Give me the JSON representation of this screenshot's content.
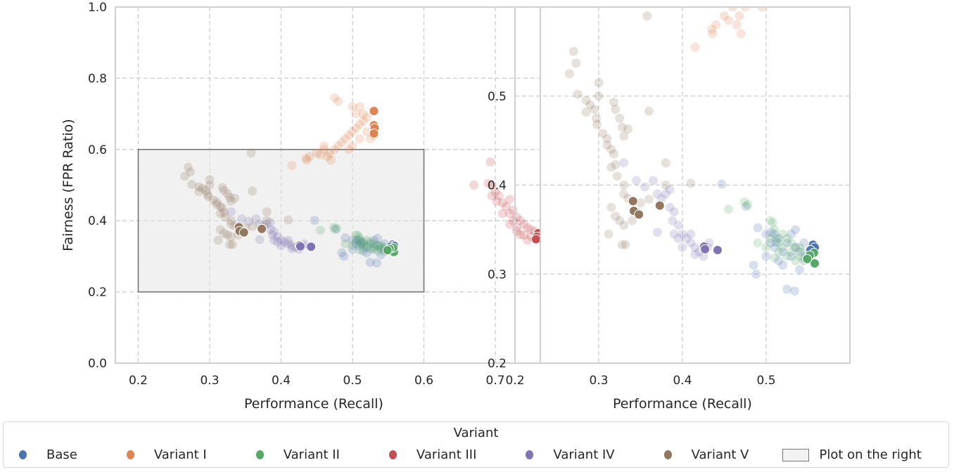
{
  "chart_data": [
    {
      "type": "scatter",
      "panel": "left",
      "xlabel": "Performance (Recall)",
      "ylabel": "Fairness (FPR Ratio)",
      "xlim": [
        0.168,
        0.763
      ],
      "ylim": [
        0.0,
        1.0
      ],
      "xticks": [
        "0.2",
        "0.3",
        "0.4",
        "0.5",
        "0.6",
        "0.7"
      ],
      "xtick_values": [
        0.2,
        0.3,
        0.4,
        0.5,
        0.6,
        0.7
      ],
      "yticks": [
        "0.0",
        "0.2",
        "0.4",
        "0.6",
        "0.8",
        "1.0"
      ],
      "ytick_values": [
        0.0,
        0.2,
        0.4,
        0.6,
        0.8,
        1.0
      ],
      "grid": true,
      "highlight_region": {
        "x": [
          0.2,
          0.6
        ],
        "y": [
          0.2,
          0.6
        ],
        "label": "Plot on the right"
      }
    },
    {
      "type": "scatter",
      "panel": "right",
      "xlabel": "Performance (Recall)",
      "ylabel": "",
      "xlim": [
        0.2,
        0.6
      ],
      "ylim": [
        0.2,
        0.6
      ],
      "xticks": [
        "0.2",
        "0.3",
        "0.4",
        "0.5"
      ],
      "xtick_values": [
        0.2,
        0.3,
        0.4,
        0.5
      ],
      "yticks": [
        "0.2",
        "0.3",
        "0.4",
        "0.5"
      ],
      "ytick_values": [
        0.2,
        0.3,
        0.4,
        0.5
      ],
      "grid": true
    }
  ],
  "series": [
    {
      "name": "Base",
      "color": "#4c72b0",
      "faded": [
        [
          0.49,
          0.352
        ],
        [
          0.5,
          0.345
        ],
        [
          0.505,
          0.335
        ],
        [
          0.51,
          0.33
        ],
        [
          0.515,
          0.34
        ],
        [
          0.52,
          0.325
        ],
        [
          0.525,
          0.335
        ],
        [
          0.53,
          0.32
        ],
        [
          0.535,
          0.33
        ],
        [
          0.54,
          0.325
        ],
        [
          0.545,
          0.335
        ],
        [
          0.535,
          0.35
        ],
        [
          0.52,
          0.31
        ],
        [
          0.515,
          0.315
        ],
        [
          0.525,
          0.283
        ],
        [
          0.534,
          0.281
        ],
        [
          0.485,
          0.31
        ],
        [
          0.488,
          0.3
        ],
        [
          0.447,
          0.401
        ],
        [
          0.476,
          0.376
        ],
        [
          0.54,
          0.305
        ],
        [
          0.53,
          0.345
        ],
        [
          0.545,
          0.315
        ],
        [
          0.55,
          0.322
        ],
        [
          0.51,
          0.345
        ],
        [
          0.5,
          0.32
        ],
        [
          0.506,
          0.347
        ],
        [
          0.512,
          0.336
        ]
      ],
      "highlighted": [
        [
          0.556,
          0.333
        ],
        [
          0.558,
          0.33
        ],
        [
          0.553,
          0.327
        ]
      ]
    },
    {
      "name": "Variant I",
      "color": "#dd8452",
      "faded": [
        [
          0.415,
          0.555
        ],
        [
          0.435,
          0.575
        ],
        [
          0.436,
          0.57
        ],
        [
          0.44,
          0.58
        ],
        [
          0.45,
          0.59
        ],
        [
          0.46,
          0.6
        ],
        [
          0.465,
          0.58
        ],
        [
          0.47,
          0.57
        ],
        [
          0.468,
          0.59
        ],
        [
          0.475,
          0.6
        ],
        [
          0.48,
          0.61
        ],
        [
          0.485,
          0.62
        ],
        [
          0.49,
          0.63
        ],
        [
          0.495,
          0.64
        ],
        [
          0.5,
          0.65
        ],
        [
          0.505,
          0.66
        ],
        [
          0.51,
          0.67
        ],
        [
          0.515,
          0.68
        ],
        [
          0.52,
          0.69
        ],
        [
          0.505,
          0.7
        ],
        [
          0.5,
          0.72
        ],
        [
          0.48,
          0.735
        ],
        [
          0.475,
          0.745
        ],
        [
          0.51,
          0.72
        ],
        [
          0.515,
          0.7
        ],
        [
          0.52,
          0.65
        ],
        [
          0.525,
          0.63
        ],
        [
          0.53,
          0.64
        ],
        [
          0.495,
          0.6
        ],
        [
          0.455,
          0.585
        ],
        [
          0.46,
          0.61
        ],
        [
          0.5,
          0.61
        ],
        [
          0.51,
          0.63
        ]
      ],
      "highlighted": [
        [
          0.53,
          0.708
        ],
        [
          0.53,
          0.668
        ],
        [
          0.531,
          0.66
        ],
        [
          0.53,
          0.645
        ]
      ]
    },
    {
      "name": "Variant II",
      "color": "#55a868",
      "faded": [
        [
          0.455,
          0.373
        ],
        [
          0.474,
          0.381
        ],
        [
          0.478,
          0.378
        ],
        [
          0.49,
          0.335
        ],
        [
          0.505,
          0.36
        ],
        [
          0.508,
          0.358
        ],
        [
          0.51,
          0.35
        ],
        [
          0.512,
          0.34
        ],
        [
          0.515,
          0.335
        ],
        [
          0.52,
          0.33
        ],
        [
          0.525,
          0.34
        ],
        [
          0.53,
          0.325
        ],
        [
          0.535,
          0.33
        ],
        [
          0.54,
          0.32
        ],
        [
          0.545,
          0.318
        ],
        [
          0.51,
          0.318
        ],
        [
          0.52,
          0.345
        ],
        [
          0.525,
          0.32
        ],
        [
          0.53,
          0.335
        ],
        [
          0.535,
          0.315
        ],
        [
          0.54,
          0.33
        ],
        [
          0.505,
          0.34
        ],
        [
          0.5,
          0.33
        ],
        [
          0.515,
          0.325
        ],
        [
          0.545,
          0.325
        ]
      ],
      "highlighted": [
        [
          0.558,
          0.312
        ],
        [
          0.557,
          0.324
        ],
        [
          0.552,
          0.321
        ],
        [
          0.549,
          0.317
        ]
      ]
    },
    {
      "name": "Variant III",
      "color": "#c44e52",
      "faded": [
        [
          0.67,
          0.5
        ],
        [
          0.69,
          0.505
        ],
        [
          0.695,
          0.5
        ],
        [
          0.693,
          0.565
        ],
        [
          0.7,
          0.48
        ],
        [
          0.695,
          0.47
        ],
        [
          0.705,
          0.47
        ],
        [
          0.71,
          0.45
        ],
        [
          0.715,
          0.44
        ],
        [
          0.72,
          0.46
        ],
        [
          0.72,
          0.42
        ],
        [
          0.725,
          0.43
        ],
        [
          0.73,
          0.41
        ],
        [
          0.735,
          0.4
        ],
        [
          0.74,
          0.39
        ],
        [
          0.745,
          0.38
        ],
        [
          0.75,
          0.375
        ],
        [
          0.74,
          0.36
        ],
        [
          0.73,
          0.38
        ],
        [
          0.72,
          0.39
        ],
        [
          0.71,
          0.42
        ],
        [
          0.755,
          0.37
        ],
        [
          0.735,
          0.36
        ],
        [
          0.745,
          0.345
        ],
        [
          0.75,
          0.355
        ],
        [
          0.73,
          0.37
        ],
        [
          0.725,
          0.4
        ],
        [
          0.702,
          0.455
        ]
      ],
      "highlighted": [
        [
          0.76,
          0.365
        ],
        [
          0.758,
          0.355
        ],
        [
          0.757,
          0.348
        ]
      ]
    },
    {
      "name": "Variant IV",
      "color": "#8172b3",
      "faded": [
        [
          0.33,
          0.425
        ],
        [
          0.345,
          0.405
        ],
        [
          0.355,
          0.398
        ],
        [
          0.365,
          0.405
        ],
        [
          0.37,
          0.39
        ],
        [
          0.375,
          0.385
        ],
        [
          0.38,
          0.39
        ],
        [
          0.385,
          0.375
        ],
        [
          0.39,
          0.37
        ],
        [
          0.388,
          0.36
        ],
        [
          0.395,
          0.355
        ],
        [
          0.39,
          0.345
        ],
        [
          0.4,
          0.345
        ],
        [
          0.405,
          0.34
        ],
        [
          0.41,
          0.335
        ],
        [
          0.415,
          0.33
        ],
        [
          0.42,
          0.325
        ],
        [
          0.425,
          0.32
        ],
        [
          0.43,
          0.33
        ],
        [
          0.4,
          0.33
        ],
        [
          0.395,
          0.34
        ],
        [
          0.41,
          0.345
        ],
        [
          0.385,
          0.395
        ],
        [
          0.37,
          0.347
        ],
        [
          0.415,
          0.322
        ],
        [
          0.432,
          0.335
        ]
      ],
      "highlighted": [
        [
          0.426,
          0.331
        ],
        [
          0.442,
          0.327
        ],
        [
          0.427,
          0.328
        ]
      ]
    },
    {
      "name": "Variant V",
      "color": "#937860",
      "faded": [
        [
          0.265,
          0.525
        ],
        [
          0.27,
          0.55
        ],
        [
          0.273,
          0.537
        ],
        [
          0.275,
          0.502
        ],
        [
          0.285,
          0.495
        ],
        [
          0.285,
          0.482
        ],
        [
          0.29,
          0.49
        ],
        [
          0.295,
          0.485
        ],
        [
          0.297,
          0.475
        ],
        [
          0.298,
          0.468
        ],
        [
          0.3,
          0.515
        ],
        [
          0.3,
          0.5
        ],
        [
          0.305,
          0.458
        ],
        [
          0.31,
          0.452
        ],
        [
          0.31,
          0.445
        ],
        [
          0.315,
          0.44
        ],
        [
          0.318,
          0.435
        ],
        [
          0.32,
          0.423
        ],
        [
          0.318,
          0.493
        ],
        [
          0.32,
          0.485
        ],
        [
          0.325,
          0.475
        ],
        [
          0.328,
          0.465
        ],
        [
          0.335,
          0.463
        ],
        [
          0.33,
          0.455
        ],
        [
          0.315,
          0.42
        ],
        [
          0.322,
          0.41
        ],
        [
          0.33,
          0.4
        ],
        [
          0.33,
          0.39
        ],
        [
          0.335,
          0.385
        ],
        [
          0.315,
          0.375
        ],
        [
          0.32,
          0.365
        ],
        [
          0.325,
          0.36
        ],
        [
          0.33,
          0.355
        ],
        [
          0.34,
          0.36
        ],
        [
          0.345,
          0.37
        ],
        [
          0.35,
          0.38
        ],
        [
          0.36,
          0.384
        ],
        [
          0.38,
          0.425
        ],
        [
          0.36,
          0.483
        ],
        [
          0.358,
          0.59
        ],
        [
          0.41,
          0.402
        ],
        [
          0.38,
          0.4
        ],
        [
          0.328,
          0.333
        ],
        [
          0.332,
          0.333
        ],
        [
          0.312,
          0.345
        ]
      ],
      "highlighted": [
        [
          0.341,
          0.382
        ],
        [
          0.342,
          0.371
        ],
        [
          0.348,
          0.367
        ],
        [
          0.373,
          0.377
        ]
      ]
    }
  ],
  "legend": {
    "title": "Variant",
    "placement": "bottom",
    "items": [
      "Base",
      "Variant I",
      "Variant II",
      "Variant III",
      "Variant IV",
      "Variant V"
    ],
    "region_label": "Plot on the right"
  }
}
